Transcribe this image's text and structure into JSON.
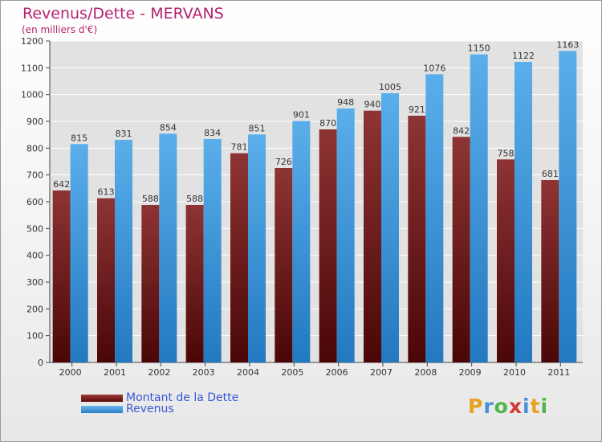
{
  "title": "Revenus/Dette - MERVANS",
  "subtitle": "(en milliers d'€)",
  "legend": {
    "debt_label": "Montant de la Dette",
    "revenue_label": "Revenus"
  },
  "colors": {
    "debt": "#7a2323",
    "revenue": "#3d99e0",
    "title": "#b5236e",
    "legend_text": "#3a56d8"
  },
  "logo": {
    "letters": [
      "P",
      "r",
      "o",
      "x",
      "i",
      "t",
      "i"
    ],
    "colors": [
      "#e8a21f",
      "#4a8fd8",
      "#4cb84c",
      "#d23a3a",
      "#4a8fd8",
      "#e8a21f",
      "#4cb84c"
    ]
  },
  "chart_data": {
    "type": "bar",
    "title": "Revenus/Dette - MERVANS",
    "subtitle": "(en milliers d'€)",
    "categories": [
      "2000",
      "2001",
      "2002",
      "2003",
      "2004",
      "2005",
      "2006",
      "2007",
      "2008",
      "2009",
      "2010",
      "2011"
    ],
    "series": [
      {
        "name": "Montant de la Dette",
        "values": [
          642,
          613,
          588,
          588,
          781,
          726,
          870,
          940,
          921,
          842,
          758,
          681
        ]
      },
      {
        "name": "Revenus",
        "values": [
          815,
          831,
          854,
          834,
          851,
          901,
          948,
          1005,
          1076,
          1150,
          1122,
          1163
        ]
      }
    ],
    "ylim": [
      0,
      1200
    ],
    "yticks": [
      0,
      100,
      200,
      300,
      400,
      500,
      600,
      700,
      800,
      900,
      1000,
      1100,
      1200
    ],
    "grid": true,
    "legend_position": "bottom-left"
  }
}
